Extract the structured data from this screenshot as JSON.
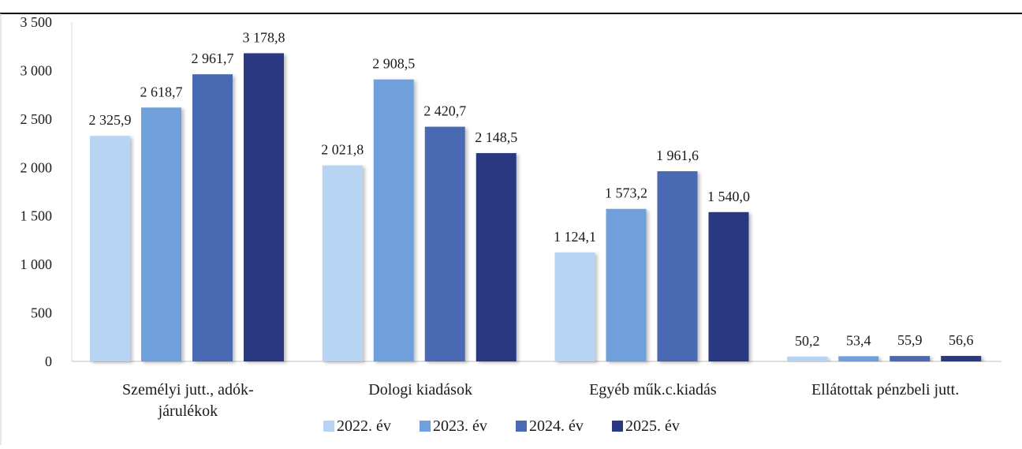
{
  "chart_data": {
    "type": "bar",
    "title": "",
    "xlabel": "",
    "ylabel": "",
    "categories": [
      [
        "Személyi jutt., adók-",
        "járulékok"
      ],
      [
        "Dologi kiadások"
      ],
      [
        "Egyéb műk.c.kiadás"
      ],
      [
        "Ellátottak pénzbeli jutt."
      ]
    ],
    "series": [
      {
        "name": "2022. év",
        "color": "#b8d4f3",
        "values": [
          2325.9,
          2021.8,
          1124.1,
          50.2
        ],
        "labels": [
          "2 325,9",
          "2 021,8",
          "1 124,1",
          "50,2"
        ]
      },
      {
        "name": "2023. év",
        "color": "#6fa0dc",
        "values": [
          2618.7,
          2908.5,
          1573.2,
          53.4
        ],
        "labels": [
          "2 618,7",
          "2 908,5",
          "1 573,2",
          "53,4"
        ]
      },
      {
        "name": "2024. év",
        "color": "#4a6bb3",
        "values": [
          2961.7,
          2420.7,
          1961.6,
          55.9
        ],
        "labels": [
          "2 961,7",
          "2 420,7",
          "1 961,6",
          "55,9"
        ]
      },
      {
        "name": "2025. év",
        "color": "#293882",
        "values": [
          3178.8,
          2148.5,
          1540.0,
          56.6
        ],
        "labels": [
          "3 178,8",
          "2 148,5",
          "1 540,0",
          "56,6"
        ]
      }
    ],
    "ylim": [
      0,
      3500
    ],
    "yticks": [
      0,
      500,
      1000,
      1500,
      2000,
      2500,
      3000,
      3500
    ],
    "ytick_labels": [
      "0",
      "500",
      "1 000",
      "1 500",
      "2 000",
      "2 500",
      "3 000",
      "3 500"
    ],
    "grid": false,
    "legend_position": "bottom"
  }
}
